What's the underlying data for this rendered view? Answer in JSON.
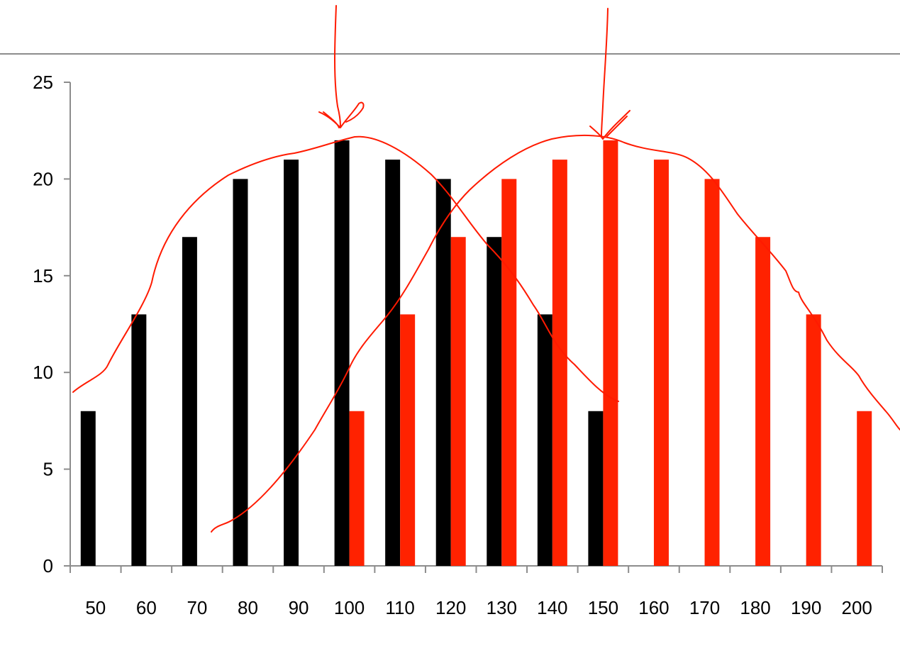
{
  "chart_data": {
    "type": "bar",
    "title": "",
    "xlabel": "",
    "ylabel": "",
    "categories": [
      "50",
      "60",
      "70",
      "80",
      "90",
      "100",
      "110",
      "120",
      "130",
      "140",
      "150",
      "160",
      "170",
      "180",
      "190",
      "200"
    ],
    "series": [
      {
        "color": "#000000",
        "values": [
          8,
          13,
          17,
          20,
          21,
          22,
          21,
          20,
          17,
          13,
          8,
          null,
          null,
          null,
          null,
          null
        ]
      },
      {
        "color": "#ff2200",
        "values": [
          null,
          null,
          null,
          null,
          null,
          8,
          13,
          17,
          20,
          21,
          22,
          21,
          20,
          17,
          13,
          8
        ]
      }
    ],
    "ylim": [
      0,
      25
    ],
    "yticks": [
      0,
      5,
      10,
      15,
      20,
      25
    ],
    "grid": false,
    "legend": "none",
    "annotations": {
      "type": "hand-drawn",
      "color": "#ff1a00",
      "marks": [
        "curve-over-black-series",
        "curve-over-red-series",
        "arrow-to-100",
        "arrow-to-150"
      ]
    }
  }
}
